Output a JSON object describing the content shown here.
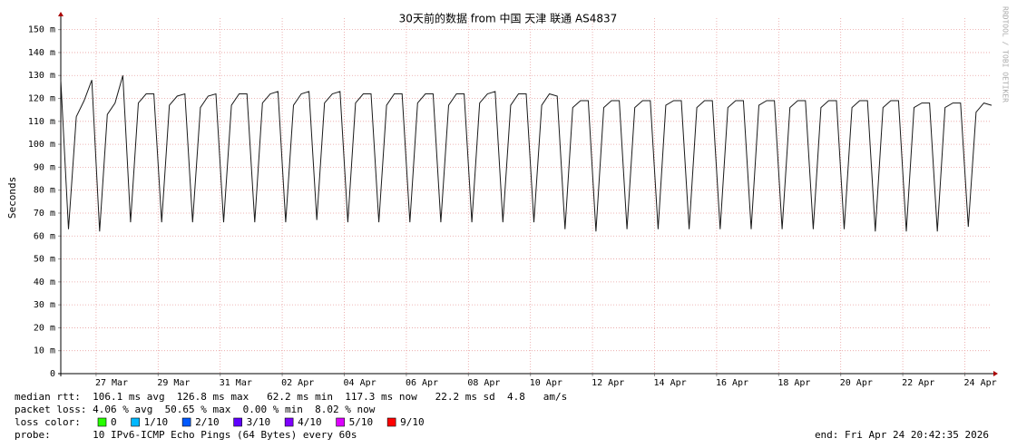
{
  "chart_data": {
    "type": "line",
    "title": "30天前的数据 from 中国 天津 联通 AS4837",
    "y_label": "Seconds",
    "side_label": "RRDTOOL / TOBI OETIKER",
    "color": "#1a1a1a",
    "grid": true,
    "ylim": [
      0,
      0.155
    ],
    "yticks": [
      {
        "value": 0,
        "label": "0"
      },
      {
        "value": 0.01,
        "label": "10 m"
      },
      {
        "value": 0.02,
        "label": "20 m"
      },
      {
        "value": 0.03,
        "label": "30 m"
      },
      {
        "value": 0.04,
        "label": "40 m"
      },
      {
        "value": 0.05,
        "label": "50 m"
      },
      {
        "value": 0.06,
        "label": "60 m"
      },
      {
        "value": 0.07,
        "label": "70 m"
      },
      {
        "value": 0.08,
        "label": "80 m"
      },
      {
        "value": 0.09,
        "label": "90 m"
      },
      {
        "value": 0.1,
        "label": "100 m"
      },
      {
        "value": 0.11,
        "label": "110 m"
      },
      {
        "value": 0.12,
        "label": "120 m"
      },
      {
        "value": 0.13,
        "label": "130 m"
      },
      {
        "value": 0.14,
        "label": "140 m"
      },
      {
        "value": 0.15,
        "label": "150 m"
      }
    ],
    "xlim": [
      "2026-03-25T20:42",
      "2026-04-24T20:42"
    ],
    "xticks": [
      {
        "value": "2026-03-27T00:00",
        "label": "27 Mar"
      },
      {
        "value": "2026-03-29T00:00",
        "label": "29 Mar"
      },
      {
        "value": "2026-03-31T00:00",
        "label": "31 Mar"
      },
      {
        "value": "2026-04-02T00:00",
        "label": "02 Apr"
      },
      {
        "value": "2026-04-04T00:00",
        "label": "04 Apr"
      },
      {
        "value": "2026-04-06T00:00",
        "label": "06 Apr"
      },
      {
        "value": "2026-04-08T00:00",
        "label": "08 Apr"
      },
      {
        "value": "2026-04-10T00:00",
        "label": "10 Apr"
      },
      {
        "value": "2026-04-12T00:00",
        "label": "12 Apr"
      },
      {
        "value": "2026-04-14T00:00",
        "label": "14 Apr"
      },
      {
        "value": "2026-04-16T00:00",
        "label": "16 Apr"
      },
      {
        "value": "2026-04-18T00:00",
        "label": "18 Apr"
      },
      {
        "value": "2026-04-20T00:00",
        "label": "20 Apr"
      },
      {
        "value": "2026-04-22T00:00",
        "label": "22 Apr"
      },
      {
        "value": "2026-04-24T00:00",
        "label": "24 Apr"
      }
    ],
    "x": [
      "2026-03-25T20:42",
      "2026-03-26T02:42",
      "2026-03-26T08:42",
      "2026-03-26T14:42",
      "2026-03-26T20:42",
      "2026-03-27T02:42",
      "2026-03-27T08:42",
      "2026-03-27T14:42",
      "2026-03-27T20:42",
      "2026-03-28T02:42",
      "2026-03-28T08:42",
      "2026-03-28T14:42",
      "2026-03-28T20:42",
      "2026-03-29T02:42",
      "2026-03-29T08:42",
      "2026-03-29T14:42",
      "2026-03-29T20:42",
      "2026-03-30T02:42",
      "2026-03-30T08:42",
      "2026-03-30T14:42",
      "2026-03-30T20:42",
      "2026-03-31T02:42",
      "2026-03-31T08:42",
      "2026-03-31T14:42",
      "2026-03-31T20:42",
      "2026-04-01T02:42",
      "2026-04-01T08:42",
      "2026-04-01T14:42",
      "2026-04-01T20:42",
      "2026-04-02T02:42",
      "2026-04-02T08:42",
      "2026-04-02T14:42",
      "2026-04-02T20:42",
      "2026-04-03T02:42",
      "2026-04-03T08:42",
      "2026-04-03T14:42",
      "2026-04-03T20:42",
      "2026-04-04T02:42",
      "2026-04-04T08:42",
      "2026-04-04T14:42",
      "2026-04-04T20:42",
      "2026-04-05T02:42",
      "2026-04-05T08:42",
      "2026-04-05T14:42",
      "2026-04-05T20:42",
      "2026-04-06T02:42",
      "2026-04-06T08:42",
      "2026-04-06T14:42",
      "2026-04-06T20:42",
      "2026-04-07T02:42",
      "2026-04-07T08:42",
      "2026-04-07T14:42",
      "2026-04-07T20:42",
      "2026-04-08T02:42",
      "2026-04-08T08:42",
      "2026-04-08T14:42",
      "2026-04-08T20:42",
      "2026-04-09T02:42",
      "2026-04-09T08:42",
      "2026-04-09T14:42",
      "2026-04-09T20:42",
      "2026-04-10T02:42",
      "2026-04-10T08:42",
      "2026-04-10T14:42",
      "2026-04-10T20:42",
      "2026-04-11T02:42",
      "2026-04-11T08:42",
      "2026-04-11T14:42",
      "2026-04-11T20:42",
      "2026-04-12T02:42",
      "2026-04-12T08:42",
      "2026-04-12T14:42",
      "2026-04-12T20:42",
      "2026-04-13T02:42",
      "2026-04-13T08:42",
      "2026-04-13T14:42",
      "2026-04-13T20:42",
      "2026-04-14T02:42",
      "2026-04-14T08:42",
      "2026-04-14T14:42",
      "2026-04-14T20:42",
      "2026-04-15T02:42",
      "2026-04-15T08:42",
      "2026-04-15T14:42",
      "2026-04-15T20:42",
      "2026-04-16T02:42",
      "2026-04-16T08:42",
      "2026-04-16T14:42",
      "2026-04-16T20:42",
      "2026-04-17T02:42",
      "2026-04-17T08:42",
      "2026-04-17T14:42",
      "2026-04-17T20:42",
      "2026-04-18T02:42",
      "2026-04-18T08:42",
      "2026-04-18T14:42",
      "2026-04-18T20:42",
      "2026-04-19T02:42",
      "2026-04-19T08:42",
      "2026-04-19T14:42",
      "2026-04-19T20:42",
      "2026-04-20T02:42",
      "2026-04-20T08:42",
      "2026-04-20T14:42",
      "2026-04-20T20:42",
      "2026-04-21T02:42",
      "2026-04-21T08:42",
      "2026-04-21T14:42",
      "2026-04-21T20:42",
      "2026-04-22T02:42",
      "2026-04-22T08:42",
      "2026-04-22T14:42",
      "2026-04-22T20:42",
      "2026-04-23T02:42",
      "2026-04-23T08:42",
      "2026-04-23T14:42",
      "2026-04-23T20:42",
      "2026-04-24T02:42",
      "2026-04-24T08:42",
      "2026-04-24T14:42",
      "2026-04-24T20:42"
    ],
    "values": [
      0.128,
      0.063,
      0.112,
      0.119,
      0.128,
      0.062,
      0.113,
      0.118,
      0.13,
      0.066,
      0.118,
      0.122,
      0.122,
      0.066,
      0.117,
      0.121,
      0.122,
      0.066,
      0.116,
      0.121,
      0.122,
      0.066,
      0.117,
      0.122,
      0.122,
      0.066,
      0.118,
      0.122,
      0.123,
      0.066,
      0.117,
      0.122,
      0.123,
      0.067,
      0.118,
      0.122,
      0.123,
      0.066,
      0.118,
      0.122,
      0.122,
      0.066,
      0.117,
      0.122,
      0.122,
      0.066,
      0.118,
      0.122,
      0.122,
      0.066,
      0.117,
      0.122,
      0.122,
      0.066,
      0.118,
      0.122,
      0.123,
      0.066,
      0.117,
      0.122,
      0.122,
      0.066,
      0.117,
      0.122,
      0.121,
      0.063,
      0.116,
      0.119,
      0.119,
      0.062,
      0.116,
      0.119,
      0.119,
      0.063,
      0.116,
      0.119,
      0.119,
      0.063,
      0.117,
      0.119,
      0.119,
      0.063,
      0.116,
      0.119,
      0.119,
      0.063,
      0.116,
      0.119,
      0.119,
      0.063,
      0.117,
      0.119,
      0.119,
      0.063,
      0.116,
      0.119,
      0.119,
      0.063,
      0.116,
      0.119,
      0.119,
      0.063,
      0.116,
      0.119,
      0.119,
      0.062,
      0.116,
      0.119,
      0.119,
      0.062,
      0.116,
      0.118,
      0.118,
      0.062,
      0.116,
      0.118,
      0.118,
      0.064,
      0.114,
      0.118,
      0.117
    ],
    "stats": [
      "median rtt:  106.1 ms avg  126.8 ms max   62.2 ms min  117.3 ms now   22.2 ms sd  4.8   am/s",
      "packet loss: 4.06 % avg  50.65 % max  0.00 % min  8.02 % now"
    ],
    "loss_legend_title": "loss color:",
    "loss_legend": [
      {
        "label": "0",
        "color": "#26ff00"
      },
      {
        "label": "1/10",
        "color": "#00b8ff"
      },
      {
        "label": "2/10",
        "color": "#0059ff"
      },
      {
        "label": "3/10",
        "color": "#5e00ff"
      },
      {
        "label": "4/10",
        "color": "#7e00ff"
      },
      {
        "label": "5/10",
        "color": "#dd00ff"
      },
      {
        "label": "9/10",
        "color": "#ff0000"
      }
    ],
    "probe": "probe:       10 IPv6-ICMP Echo Pings (64 Bytes) every 60s",
    "end": "end: Fri Apr 24 20:42:35 2026"
  }
}
